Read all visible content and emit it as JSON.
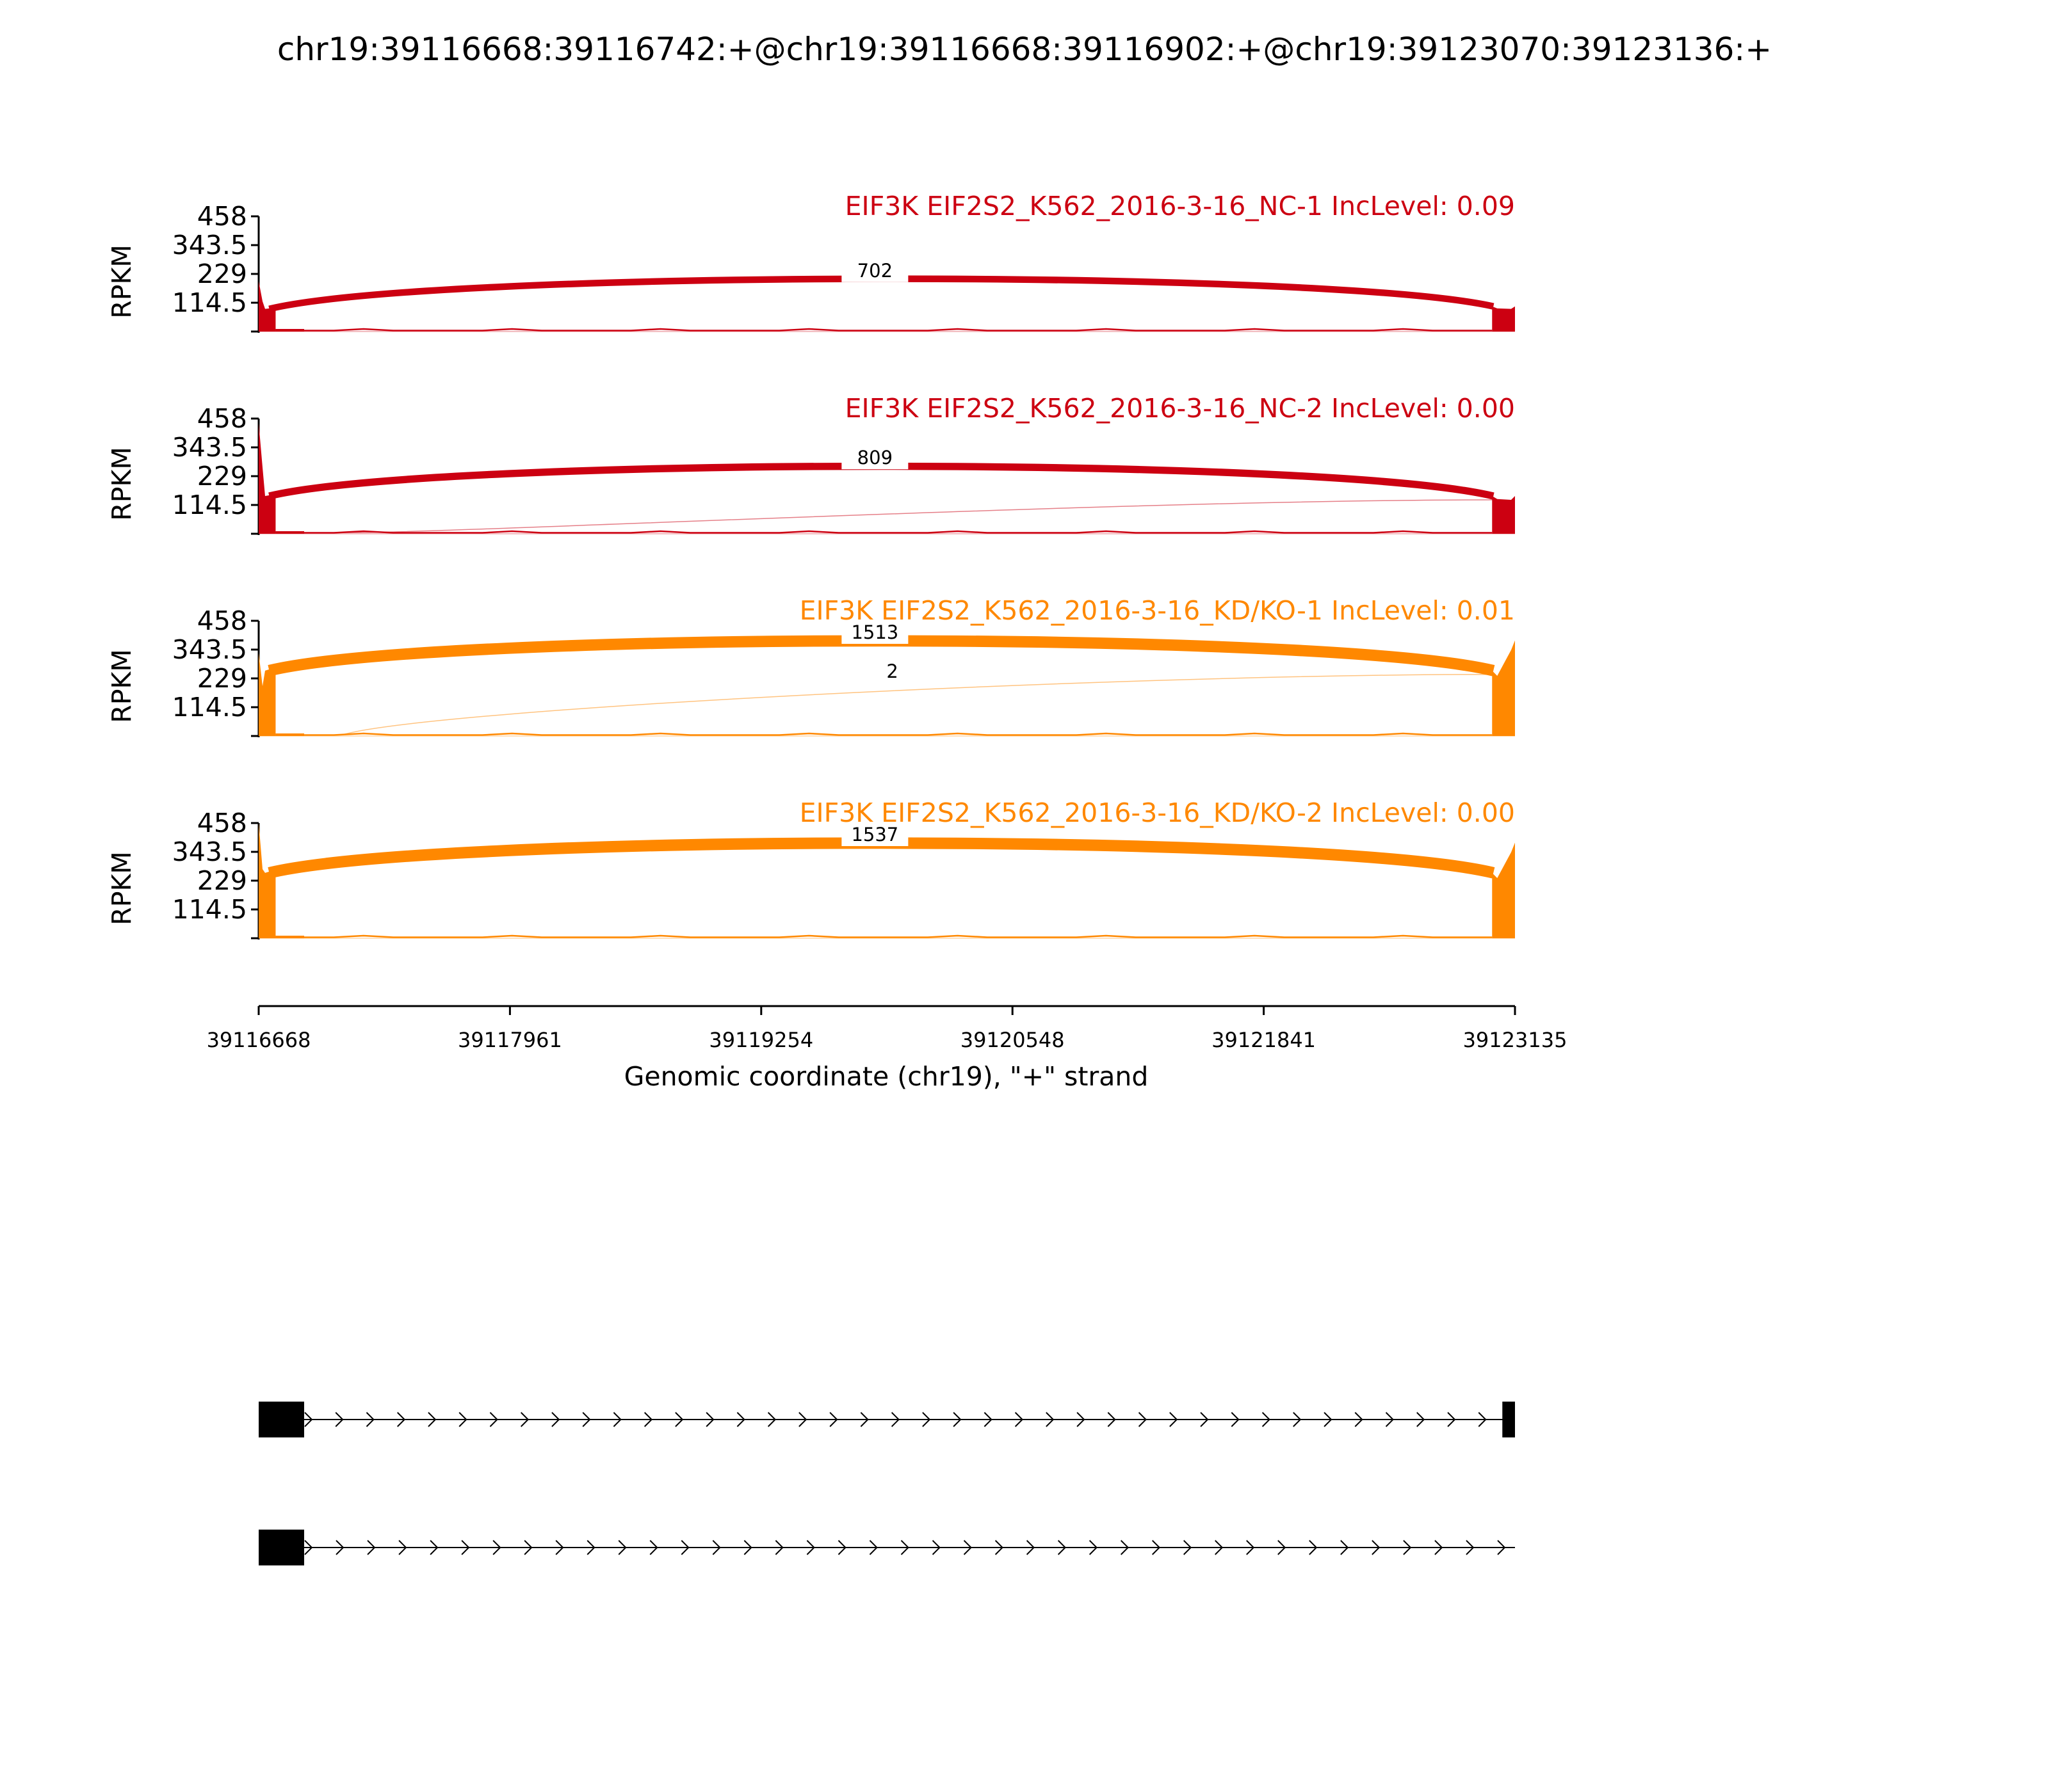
{
  "chart_data": {
    "type": "sashimi",
    "title": "chr19:39116668:39116742:+@chr19:39116668:39116902:+@chr19:39123070:39123136:+",
    "ylabel": "RPKM",
    "xlabel": "Genomic coordinate (chr19), \"+\" strand",
    "xlim": [
      39116668,
      39123135
    ],
    "x_ticks": [
      "39116668",
      "39117961",
      "39119254",
      "39120548",
      "39121841",
      "39123135"
    ],
    "ylim": [
      0,
      458
    ],
    "y_ticks": [
      "458",
      "343.5",
      "229",
      "114.5"
    ],
    "tracks": [
      {
        "label": "EIF3K EIF2S2_K562_2016-3-16_NC-1 IncLevel: 0.09",
        "color": "#cc0011",
        "junctions": [
          {
            "start": 39116742,
            "end": 39123070,
            "count": "702"
          }
        ],
        "coverage": {
          "exon1_left": 200,
          "exon1_right": 90,
          "exon2_left": 100,
          "exon2_right": 100
        }
      },
      {
        "label": "EIF3K EIF2S2_K562_2016-3-16_NC-2 IncLevel: 0.00",
        "color": "#cc0011",
        "junctions": [
          {
            "start": 39116742,
            "end": 39123070,
            "count": "809"
          },
          {
            "start": 39116902,
            "end": 39123070,
            "count": ""
          }
        ],
        "coverage": {
          "exon1_left": 440,
          "exon1_right": 150,
          "exon2_left": 150,
          "exon2_right": 150
        }
      },
      {
        "label": "EIF3K EIF2S2_K562_2016-3-16_KD/KO-1 IncLevel: 0.01",
        "color": "#ff8800",
        "junctions": [
          {
            "start": 39116742,
            "end": 39123070,
            "count": "1513"
          },
          {
            "start": 39116902,
            "end": 39123070,
            "count": "2"
          }
        ],
        "coverage": {
          "exon1_left": 330,
          "exon1_right": 260,
          "exon2_left": 260,
          "exon2_right": 380
        }
      },
      {
        "label": "EIF3K EIF2S2_K562_2016-3-16_KD/KO-2 IncLevel: 0.00",
        "color": "#ff8800",
        "junctions": [
          {
            "start": 39116742,
            "end": 39123070,
            "count": "1537"
          }
        ],
        "coverage": {
          "exon1_left": 458,
          "exon1_right": 260,
          "exon2_left": 260,
          "exon2_right": 380
        }
      }
    ],
    "transcripts": [
      {
        "exons": [
          [
            39116668,
            39116902
          ],
          [
            39123070,
            39123136
          ]
        ],
        "span": [
          39116668,
          39123135
        ]
      },
      {
        "exons": [
          [
            39116668,
            39116902
          ]
        ],
        "span": [
          39116668,
          39123135
        ]
      }
    ]
  }
}
